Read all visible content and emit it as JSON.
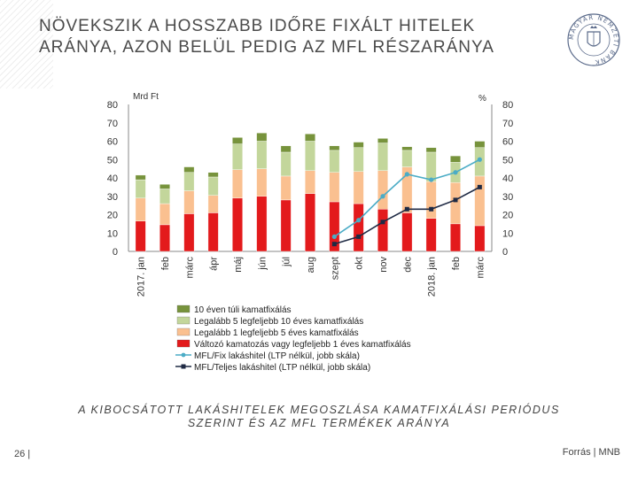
{
  "slide": {
    "title_line1": "NÖVEKSZIK A HOSSZABB IDŐRE FIXÁLT HITELEK",
    "title_line2": "ARÁNYA, AZON BELÜL PEDIG AZ MFL RÉSZARÁNYA",
    "caption_line1": "A KIBOCSÁTOTT LAKÁSHITELEK MEGOSZLÁSA KAMATFIXÁLÁSI PERIÓDUS",
    "caption_line2": "SZERINT ÉS AZ MFL TERMÉKEK ARÁNYA",
    "page_number": "26 |",
    "source": "Forrás | MNB",
    "logo_text": "MAGYAR NEMZETI BANK"
  },
  "colors": {
    "over10": "#77933c",
    "y5to10": "#c3d69b",
    "y1to5": "#fac090",
    "variable": "#e31a1c",
    "fix_line": "#4bacc6",
    "total_line": "#1f2a44"
  },
  "chart_data": {
    "type": "bar",
    "categories": [
      "2017. jan",
      "feb",
      "márc",
      "ápr",
      "máj",
      "jún",
      "júl",
      "aug",
      "szept",
      "okt",
      "nov",
      "dec",
      "2018. jan",
      "feb",
      "márc"
    ],
    "ylabel_left": "Mrd Ft",
    "ylabel_right": "%",
    "ylim_left": [
      0,
      80
    ],
    "ylim_right": [
      0,
      80
    ],
    "yticks": [
      0,
      10,
      20,
      30,
      40,
      50,
      60,
      70,
      80
    ],
    "grid": false,
    "legend_position": "bottom",
    "series": [
      {
        "name": "Változó kamatozás vagy legfeljebb 1 éves kamatfixálás",
        "kind": "bar",
        "color_key": "variable",
        "values": [
          16.5,
          14.5,
          20.5,
          21,
          29,
          30,
          28,
          31.5,
          27,
          26,
          23,
          21,
          18,
          15,
          14
        ]
      },
      {
        "name": "Legalább 1 legfeljebb 5 éves kamatfixálás",
        "kind": "bar",
        "color_key": "y1to5",
        "values": [
          12.5,
          11.5,
          12.5,
          9.5,
          15.5,
          15,
          13,
          12.5,
          16,
          17.5,
          21,
          25,
          20,
          22.5,
          27
        ]
      },
      {
        "name": "Legalább 5 legfeljebb 10 éves kamatfixálás",
        "kind": "bar",
        "color_key": "y5to10",
        "values": [
          10,
          8,
          10,
          10,
          14,
          15,
          13,
          16,
          12,
          13,
          15,
          9,
          16,
          11,
          15.5
        ]
      },
      {
        "name": "10 éven túli kamatfixálás",
        "kind": "bar",
        "color_key": "over10",
        "values": [
          2.5,
          2.5,
          3,
          2.5,
          3.5,
          4.5,
          3.5,
          4,
          2.5,
          3,
          2.5,
          2,
          2.5,
          3.5,
          3.5
        ]
      },
      {
        "name": "MFL/Fix lakáshitel (LTP nélkül, jobb skála)",
        "kind": "line",
        "color_key": "fix_line",
        "marker": "circle",
        "values": [
          null,
          null,
          null,
          null,
          null,
          null,
          null,
          null,
          8,
          17,
          30,
          42,
          39,
          43,
          50
        ]
      },
      {
        "name": "MFL/Teljes lakáshitel (LTP nélkül, jobb skála)",
        "kind": "line",
        "color_key": "total_line",
        "marker": "square",
        "values": [
          null,
          null,
          null,
          null,
          null,
          null,
          null,
          null,
          4,
          8,
          16,
          23,
          23,
          28,
          35
        ]
      }
    ]
  }
}
